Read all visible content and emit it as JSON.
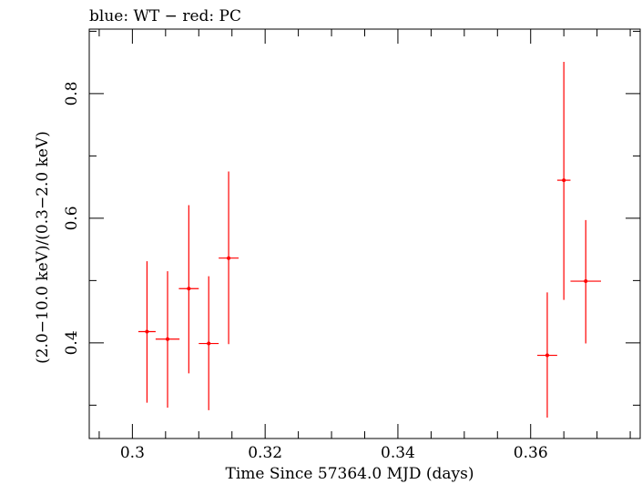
{
  "chart_data": {
    "type": "scatter",
    "title": "blue: WT − red: PC",
    "xlabel": "Time Since 57364.0 MJD (days)",
    "ylabel": "(2.0−10.0 keV)/(0.3−2.0 keV)",
    "xlim": [
      0.2935,
      0.3765
    ],
    "ylim": [
      0.2465,
      0.9035
    ],
    "x_ticks": [
      0.3,
      0.32,
      0.34,
      0.36
    ],
    "x_tick_labels": [
      "0.3",
      "0.32",
      "0.34",
      "0.36"
    ],
    "y_ticks": [
      0.4,
      0.6,
      0.8
    ],
    "y_tick_labels": [
      "0.4",
      "0.6",
      "0.8"
    ],
    "grid": false,
    "series": [
      {
        "color": "#ff0000",
        "points": [
          {
            "x": 0.3022,
            "xerr": 0.0013,
            "y": 0.418,
            "yerr_low": 0.114,
            "yerr_high": 0.113
          },
          {
            "x": 0.3053,
            "xerr": 0.0018,
            "y": 0.406,
            "yerr_low": 0.11,
            "yerr_high": 0.109
          },
          {
            "x": 0.3085,
            "xerr": 0.0015,
            "y": 0.487,
            "yerr_low": 0.136,
            "yerr_high": 0.134
          },
          {
            "x": 0.3115,
            "xerr": 0.0015,
            "y": 0.399,
            "yerr_low": 0.107,
            "yerr_high": 0.108
          },
          {
            "x": 0.3145,
            "xerr": 0.0015,
            "y": 0.536,
            "yerr_low": 0.138,
            "yerr_high": 0.139
          },
          {
            "x": 0.3625,
            "xerr": 0.0015,
            "y": 0.38,
            "yerr_low": 0.1,
            "yerr_high": 0.101
          },
          {
            "x": 0.365,
            "xerr": 0.001,
            "y": 0.661,
            "yerr_low": 0.192,
            "yerr_high": 0.19
          },
          {
            "x": 0.3683,
            "xerr": 0.0023,
            "y": 0.499,
            "yerr_low": 0.1,
            "yerr_high": 0.098
          }
        ]
      }
    ]
  }
}
